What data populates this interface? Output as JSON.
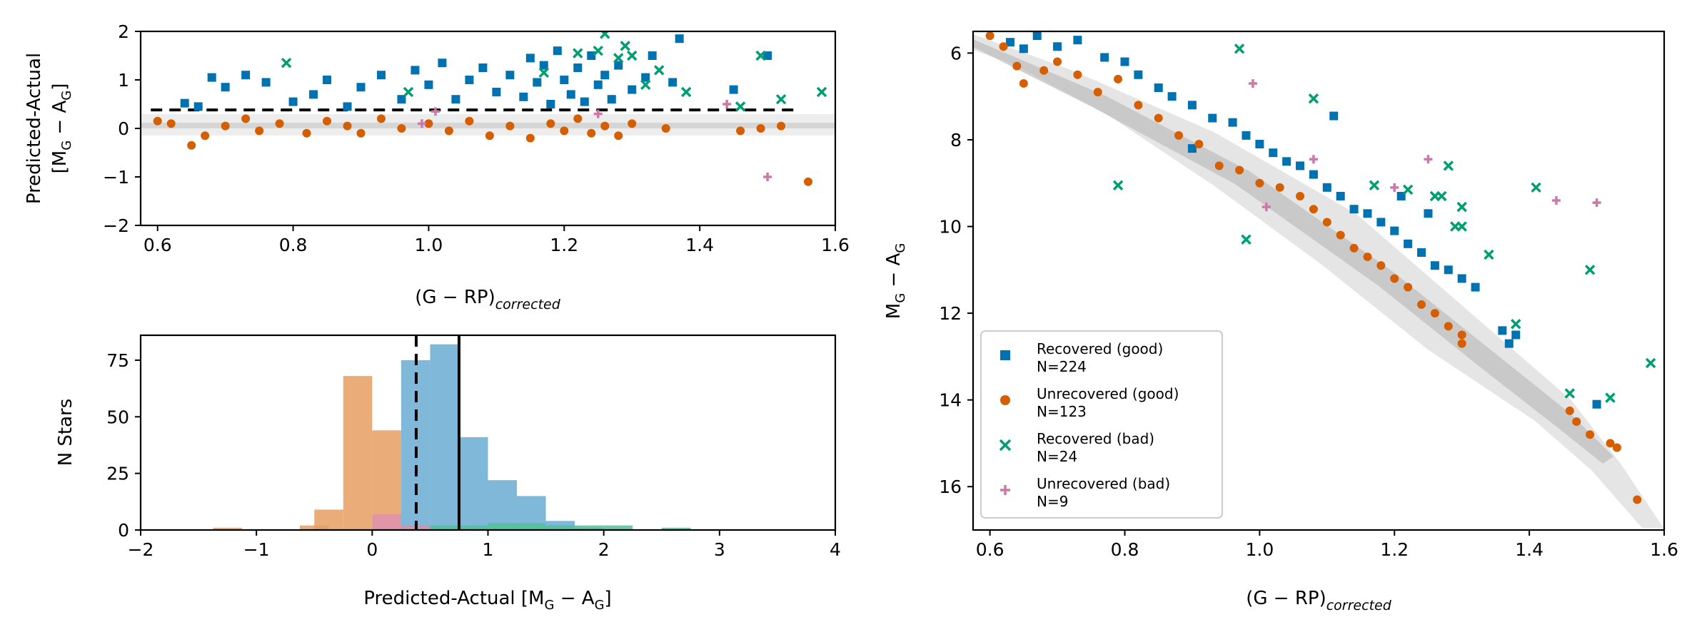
{
  "chart_data": [
    {
      "type": "scatter",
      "xlabel_main": "(G − RP)",
      "xlabel_sub": "corrected",
      "ylabel_line1": "Predicted-Actual",
      "ylabel_line2": "[M",
      "ylabel_line2_sub": "G",
      "ylabel_line2_mid": " − A",
      "ylabel_line2_sub2": "G",
      "ylabel_line2_end": "]",
      "xlim": [
        0.575,
        1.6
      ],
      "ylim": [
        -2,
        2
      ],
      "x_ticks": [
        "0.6",
        "0.8",
        "1.0",
        "1.2",
        "1.4",
        "1.6"
      ],
      "y_ticks": [
        "2",
        "1",
        "0",
        "−1",
        "−2"
      ],
      "threshold_y": 0.38,
      "series": [
        {
          "color": "#0072b2",
          "marker": "square",
          "points": [
            [
              0.64,
              0.52
            ],
            [
              0.66,
              0.45
            ],
            [
              0.68,
              1.05
            ],
            [
              0.7,
              0.85
            ],
            [
              0.73,
              1.1
            ],
            [
              0.76,
              0.95
            ],
            [
              0.8,
              0.55
            ],
            [
              0.83,
              0.7
            ],
            [
              0.85,
              1.0
            ],
            [
              0.88,
              0.45
            ],
            [
              0.9,
              0.85
            ],
            [
              0.93,
              1.1
            ],
            [
              0.96,
              0.6
            ],
            [
              0.98,
              1.2
            ],
            [
              1.0,
              0.9
            ],
            [
              1.02,
              1.35
            ],
            [
              1.04,
              0.6
            ],
            [
              1.06,
              1.0
            ],
            [
              1.08,
              1.25
            ],
            [
              1.1,
              0.75
            ],
            [
              1.12,
              1.1
            ],
            [
              1.14,
              0.65
            ],
            [
              1.15,
              1.45
            ],
            [
              1.16,
              0.95
            ],
            [
              1.17,
              1.3
            ],
            [
              1.18,
              0.5
            ],
            [
              1.19,
              1.6
            ],
            [
              1.2,
              1.0
            ],
            [
              1.21,
              0.7
            ],
            [
              1.22,
              1.25
            ],
            [
              1.23,
              0.55
            ],
            [
              1.24,
              1.5
            ],
            [
              1.25,
              0.9
            ],
            [
              1.26,
              1.1
            ],
            [
              1.27,
              0.6
            ],
            [
              1.28,
              1.3
            ],
            [
              1.3,
              0.8
            ],
            [
              1.32,
              1.05
            ],
            [
              1.33,
              1.5
            ],
            [
              1.36,
              0.95
            ],
            [
              1.37,
              1.85
            ],
            [
              1.45,
              0.8
            ],
            [
              1.5,
              1.5
            ]
          ]
        },
        {
          "color": "#d55e00",
          "marker": "circle",
          "points": [
            [
              0.6,
              0.15
            ],
            [
              0.62,
              0.1
            ],
            [
              0.65,
              -0.35
            ],
            [
              0.67,
              -0.15
            ],
            [
              0.7,
              0.05
            ],
            [
              0.73,
              0.2
            ],
            [
              0.75,
              -0.05
            ],
            [
              0.78,
              0.1
            ],
            [
              0.82,
              -0.1
            ],
            [
              0.85,
              0.15
            ],
            [
              0.88,
              0.05
            ],
            [
              0.9,
              -0.1
            ],
            [
              0.93,
              0.2
            ],
            [
              0.96,
              0.0
            ],
            [
              1.0,
              0.1
            ],
            [
              1.03,
              -0.05
            ],
            [
              1.06,
              0.15
            ],
            [
              1.09,
              -0.15
            ],
            [
              1.12,
              0.05
            ],
            [
              1.15,
              -0.2
            ],
            [
              1.18,
              0.1
            ],
            [
              1.2,
              -0.05
            ],
            [
              1.22,
              0.2
            ],
            [
              1.24,
              -0.1
            ],
            [
              1.26,
              0.05
            ],
            [
              1.28,
              -0.15
            ],
            [
              1.3,
              0.1
            ],
            [
              1.35,
              0.0
            ],
            [
              1.46,
              -0.05
            ],
            [
              1.49,
              0.0
            ],
            [
              1.52,
              0.05
            ],
            [
              1.56,
              -1.1
            ]
          ]
        },
        {
          "color": "#009e73",
          "marker": "x",
          "points": [
            [
              0.79,
              1.35
            ],
            [
              0.97,
              0.75
            ],
            [
              1.17,
              1.15
            ],
            [
              1.22,
              1.55
            ],
            [
              1.25,
              1.6
            ],
            [
              1.26,
              1.95
            ],
            [
              1.28,
              1.45
            ],
            [
              1.29,
              1.7
            ],
            [
              1.3,
              1.5
            ],
            [
              1.32,
              0.9
            ],
            [
              1.34,
              1.2
            ],
            [
              1.38,
              0.75
            ],
            [
              1.46,
              0.45
            ],
            [
              1.49,
              1.5
            ],
            [
              1.52,
              0.6
            ],
            [
              1.58,
              0.75
            ]
          ]
        },
        {
          "color": "#cc79a7",
          "marker": "plus",
          "points": [
            [
              0.99,
              0.1
            ],
            [
              1.01,
              0.35
            ],
            [
              1.25,
              0.3
            ],
            [
              1.44,
              0.5
            ],
            [
              1.5,
              -1.0
            ]
          ]
        }
      ]
    },
    {
      "type": "bar",
      "xlabel": "Predicted-Actual [M",
      "xlabel_sub": "G",
      "xlabel_mid": " − A",
      "xlabel_sub2": "G",
      "xlabel_end": "]",
      "ylabel": "N Stars",
      "xlim": [
        -2,
        4
      ],
      "ylim": [
        0,
        86
      ],
      "x_ticks": [
        "−2",
        "−1",
        "0",
        "1",
        "2",
        "3",
        "4"
      ],
      "y_ticks": [
        "0",
        "25",
        "50",
        "75"
      ],
      "bin_width": 0.25,
      "dashed_x": 0.38,
      "solid_x": 0.75,
      "series": [
        {
          "color": "#e69f63",
          "bins": [
            [
              -1.25,
              1
            ],
            [
              -0.5,
              2
            ],
            [
              -0.375,
              9
            ],
            [
              -0.125,
              68
            ],
            [
              0.125,
              44
            ]
          ]
        },
        {
          "color": "#6aabd2",
          "bins": [
            [
              0.375,
              75
            ],
            [
              0.625,
              82
            ],
            [
              0.875,
              41
            ],
            [
              1.125,
              22
            ],
            [
              1.375,
              15
            ],
            [
              1.625,
              4
            ],
            [
              1.875,
              1
            ]
          ]
        },
        {
          "color": "#4fbf9a",
          "bins": [
            [
              0.375,
              2
            ],
            [
              0.625,
              2
            ],
            [
              0.875,
              2
            ],
            [
              1.125,
              3
            ],
            [
              1.375,
              3
            ],
            [
              1.625,
              2
            ],
            [
              1.875,
              2
            ],
            [
              2.125,
              2
            ],
            [
              2.625,
              1
            ]
          ]
        },
        {
          "color": "#e08fb0",
          "bins": [
            [
              0.125,
              7
            ],
            [
              0.375,
              2
            ]
          ]
        }
      ]
    },
    {
      "type": "scatter",
      "xlabel_main": "(G − RP)",
      "xlabel_sub": "corrected",
      "ylabel_main": "M",
      "ylabel_sub": "G",
      "ylabel_mid": " − A",
      "ylabel_sub2": "G",
      "xlim": [
        0.575,
        1.6
      ],
      "ylim": [
        17,
        5.5
      ],
      "y_inverted": true,
      "x_ticks": [
        "0.6",
        "0.8",
        "1.0",
        "1.2",
        "1.4",
        "1.6"
      ],
      "y_ticks": [
        "6",
        "8",
        "10",
        "12",
        "14",
        "16"
      ],
      "legend_position": "lower-left",
      "legend": [
        {
          "label": "Recovered (good)",
          "count": "N=224",
          "color": "#0072b2",
          "marker": "square"
        },
        {
          "label": "Unrecovered (good)",
          "count": "N=123",
          "color": "#d55e00",
          "marker": "circle"
        },
        {
          "label": "Recovered (bad)",
          "count": "N=24",
          "color": "#009e73",
          "marker": "x"
        },
        {
          "label": "Unrecovered (bad)",
          "count": "N=9",
          "color": "#cc79a7",
          "marker": "plus"
        }
      ],
      "series": [
        {
          "color": "#0072b2",
          "marker": "square",
          "points": [
            [
              0.63,
              5.75
            ],
            [
              0.65,
              5.9
            ],
            [
              0.67,
              5.6
            ],
            [
              0.7,
              5.85
            ],
            [
              0.73,
              5.7
            ],
            [
              0.77,
              6.1
            ],
            [
              0.8,
              6.2
            ],
            [
              0.82,
              6.5
            ],
            [
              0.85,
              6.8
            ],
            [
              0.87,
              7.0
            ],
            [
              0.9,
              7.2
            ],
            [
              0.9,
              8.2
            ],
            [
              0.93,
              7.5
            ],
            [
              0.96,
              7.6
            ],
            [
              0.98,
              7.9
            ],
            [
              1.0,
              8.1
            ],
            [
              1.02,
              8.3
            ],
            [
              1.04,
              8.5
            ],
            [
              1.06,
              8.6
            ],
            [
              1.08,
              8.8
            ],
            [
              1.1,
              9.1
            ],
            [
              1.11,
              7.45
            ],
            [
              1.12,
              9.3
            ],
            [
              1.14,
              9.6
            ],
            [
              1.16,
              9.7
            ],
            [
              1.18,
              9.9
            ],
            [
              1.2,
              10.1
            ],
            [
              1.21,
              9.3
            ],
            [
              1.22,
              10.4
            ],
            [
              1.24,
              10.6
            ],
            [
              1.25,
              9.7
            ],
            [
              1.26,
              10.9
            ],
            [
              1.28,
              11.0
            ],
            [
              1.3,
              11.2
            ],
            [
              1.32,
              11.4
            ],
            [
              1.36,
              12.4
            ],
            [
              1.37,
              12.7
            ],
            [
              1.38,
              12.5
            ],
            [
              1.5,
              14.1
            ]
          ]
        },
        {
          "color": "#d55e00",
          "marker": "circle",
          "points": [
            [
              0.6,
              5.6
            ],
            [
              0.62,
              5.85
            ],
            [
              0.64,
              6.3
            ],
            [
              0.65,
              6.7
            ],
            [
              0.68,
              6.4
            ],
            [
              0.7,
              6.2
            ],
            [
              0.73,
              6.5
            ],
            [
              0.76,
              6.9
            ],
            [
              0.79,
              6.6
            ],
            [
              0.82,
              7.2
            ],
            [
              0.85,
              7.5
            ],
            [
              0.88,
              7.9
            ],
            [
              0.91,
              8.1
            ],
            [
              0.94,
              8.6
            ],
            [
              0.97,
              8.7
            ],
            [
              1.0,
              9.0
            ],
            [
              1.03,
              9.1
            ],
            [
              1.06,
              9.3
            ],
            [
              1.08,
              9.6
            ],
            [
              1.1,
              9.9
            ],
            [
              1.12,
              10.2
            ],
            [
              1.14,
              10.5
            ],
            [
              1.16,
              10.7
            ],
            [
              1.18,
              10.9
            ],
            [
              1.2,
              11.2
            ],
            [
              1.22,
              11.4
            ],
            [
              1.24,
              11.8
            ],
            [
              1.26,
              12.0
            ],
            [
              1.28,
              12.3
            ],
            [
              1.3,
              12.5
            ],
            [
              1.3,
              12.7
            ],
            [
              1.46,
              14.25
            ],
            [
              1.47,
              14.5
            ],
            [
              1.49,
              14.8
            ],
            [
              1.52,
              15.0
            ],
            [
              1.53,
              15.1
            ],
            [
              1.56,
              16.3
            ]
          ]
        },
        {
          "color": "#009e73",
          "marker": "x",
          "points": [
            [
              0.79,
              9.05
            ],
            [
              0.97,
              5.9
            ],
            [
              0.98,
              10.3
            ],
            [
              1.08,
              7.05
            ],
            [
              1.17,
              9.05
            ],
            [
              1.22,
              9.15
            ],
            [
              1.26,
              9.3
            ],
            [
              1.27,
              9.3
            ],
            [
              1.28,
              8.6
            ],
            [
              1.29,
              10.0
            ],
            [
              1.3,
              9.55
            ],
            [
              1.3,
              10.0
            ],
            [
              1.34,
              10.65
            ],
            [
              1.38,
              12.25
            ],
            [
              1.41,
              9.1
            ],
            [
              1.46,
              13.85
            ],
            [
              1.49,
              11.0
            ],
            [
              1.52,
              13.95
            ],
            [
              1.58,
              13.15
            ]
          ]
        },
        {
          "color": "#cc79a7",
          "marker": "plus",
          "points": [
            [
              0.99,
              6.7
            ],
            [
              1.01,
              9.55
            ],
            [
              1.08,
              8.45
            ],
            [
              1.25,
              8.45
            ],
            [
              1.2,
              9.1
            ],
            [
              1.44,
              9.4
            ],
            [
              1.5,
              9.45
            ]
          ]
        }
      ]
    }
  ]
}
